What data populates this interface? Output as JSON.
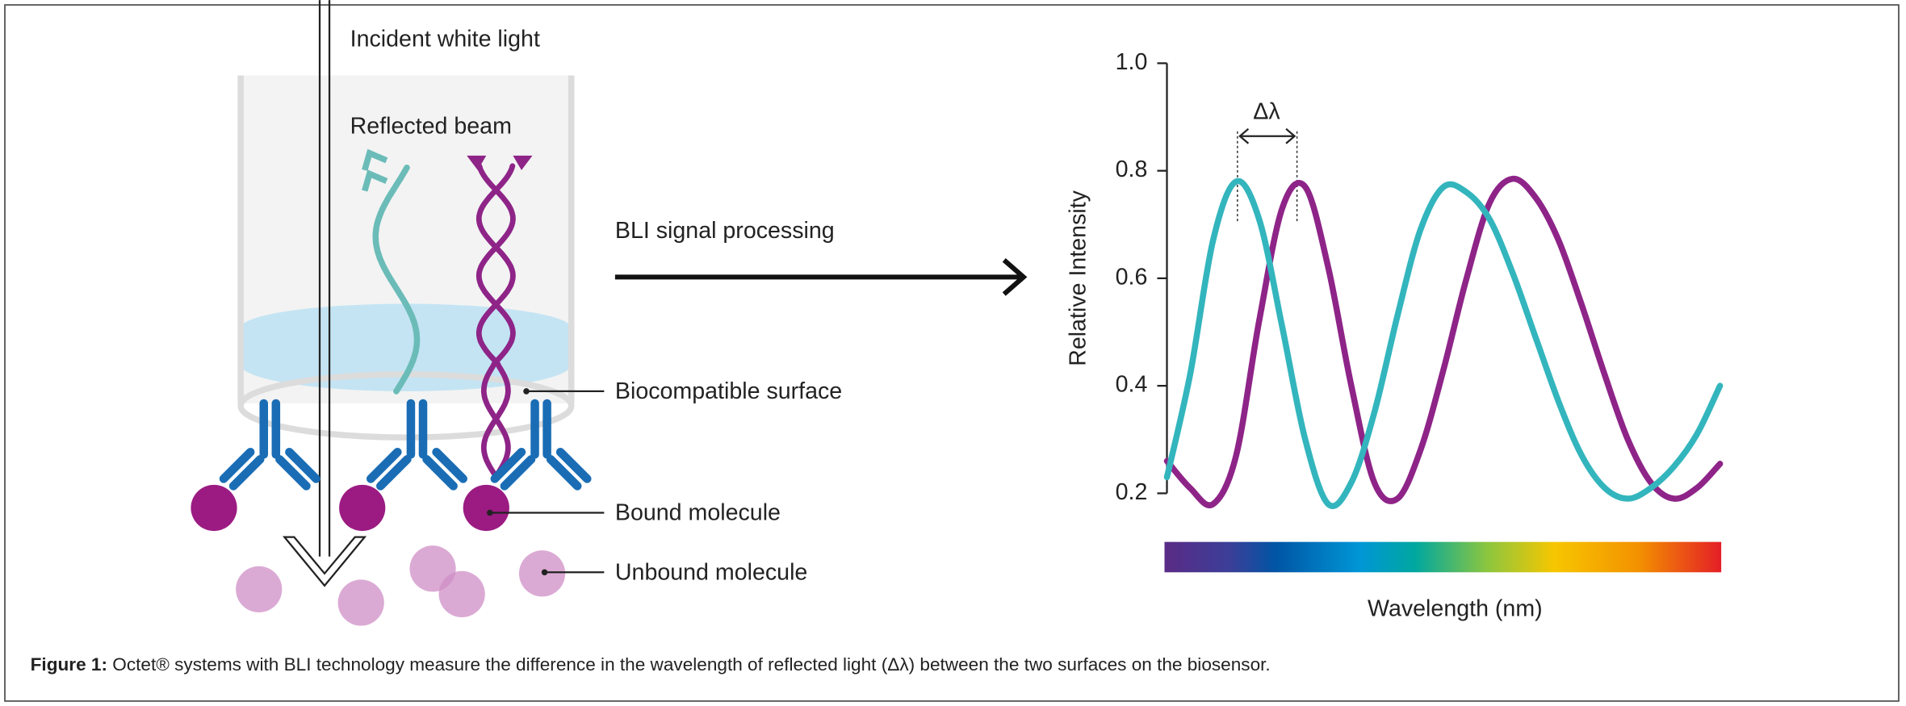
{
  "diagram": {
    "incident_light": "Incident white light",
    "reflected_beam": "Reflected beam",
    "signal_processing": "BLI signal processing",
    "surface": "Biocompatible surface",
    "bound": "Bound molecule",
    "unbound": "Unbound molecule"
  },
  "chart_data": {
    "type": "line",
    "ylabel": "Relative Intensity",
    "xlabel": "Wavelength (nm)",
    "annotation": "Δλ",
    "categories": [
      null,
      null,
      null,
      null,
      null,
      null,
      null,
      null,
      null,
      null,
      null,
      null,
      null,
      null,
      null,
      null,
      null,
      null,
      null,
      null,
      null,
      null,
      null,
      null,
      null
    ],
    "series": [
      {
        "color": "#33b5bd",
        "values": [
          0.23,
          0.42,
          0.67,
          0.78,
          0.71,
          0.51,
          0.3,
          0.18,
          0.22,
          0.35,
          0.53,
          0.69,
          0.77,
          0.76,
          0.71,
          0.61,
          0.49,
          0.37,
          0.27,
          0.21,
          0.19,
          0.21,
          0.25,
          0.31,
          0.4
        ]
      },
      {
        "color": "#8e2488",
        "values": [
          0.26,
          0.21,
          0.18,
          0.27,
          0.52,
          0.73,
          0.77,
          0.62,
          0.4,
          0.22,
          0.19,
          0.28,
          0.43,
          0.6,
          0.74,
          0.785,
          0.75,
          0.67,
          0.55,
          0.42,
          0.3,
          0.22,
          0.19,
          0.21,
          0.255
        ]
      }
    ],
    "ylim": [
      0.1,
      1.0
    ],
    "yticks": [
      {
        "value": 1.0,
        "label": "1.0"
      },
      0.8,
      0.6,
      0.4,
      0.2
    ]
  },
  "caption": {
    "label": "Figure 1:",
    "text": " Octet® systems with BLI technology measure the difference in the wavelength of reflected light (Δλ) between the two surfaces on the biosensor."
  }
}
